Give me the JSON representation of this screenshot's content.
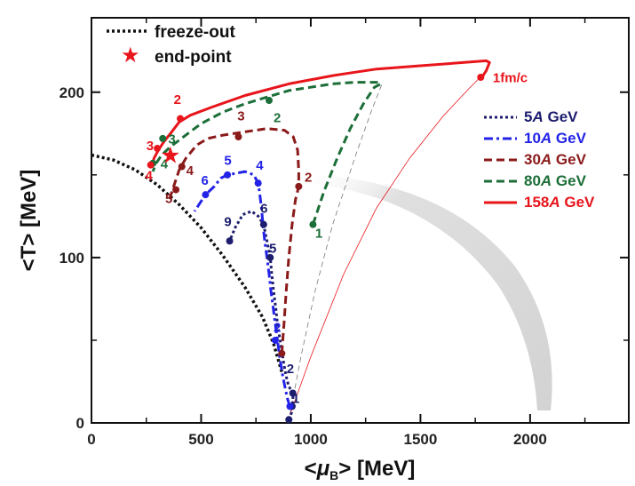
{
  "chart_data": {
    "type": "line",
    "xlabel": {
      "pre": "<",
      "sym": "μ",
      "sub": "B",
      "post": "> [MeV]"
    },
    "ylabel": "<T> [MeV]",
    "xlim": [
      0,
      2450
    ],
    "ylim": [
      0,
      245
    ],
    "xticks": [
      0,
      500,
      1000,
      1500,
      2000
    ],
    "yticks": [
      0,
      100,
      200
    ],
    "grid": false,
    "top_legend": {
      "freeze_out_label": "freeze-out",
      "endpoint_label": "end-point"
    },
    "legend_position": "right",
    "endpoint": {
      "x": 360,
      "y": 162,
      "color": "#e8151b"
    },
    "freeze_out": {
      "color": "#111111",
      "points": [
        [
          0,
          162
        ],
        [
          100,
          159
        ],
        [
          200,
          153
        ],
        [
          300,
          144
        ],
        [
          400,
          132
        ],
        [
          500,
          118
        ],
        [
          600,
          101
        ],
        [
          700,
          82
        ],
        [
          780,
          64
        ],
        [
          830,
          48
        ],
        [
          870,
          30
        ]
      ]
    },
    "series": [
      {
        "name": "5A GeV",
        "label_parts": [
          "5",
          "A",
          " GeV"
        ],
        "color": "#1d1d6e",
        "style": "dotted",
        "points": [
          [
            900,
            2
          ],
          [
            912,
            6
          ],
          [
            915,
            10
          ],
          [
            918,
            14
          ],
          [
            920,
            18
          ],
          [
            900,
            22
          ],
          [
            888,
            28
          ],
          [
            878,
            35
          ],
          [
            870,
            42
          ],
          [
            860,
            50
          ],
          [
            848,
            60
          ],
          [
            840,
            70
          ],
          [
            830,
            80
          ],
          [
            822,
            90
          ],
          [
            815,
            100
          ],
          [
            800,
            110
          ],
          [
            785,
            120
          ],
          [
            760,
            125
          ],
          [
            730,
            128
          ],
          [
            690,
            126
          ],
          [
            655,
            118
          ],
          [
            630,
            110
          ]
        ],
        "markers": [
          [
            900,
            2
          ],
          [
            915,
            10
          ],
          [
            918,
            18
          ],
          [
            815,
            100
          ],
          [
            785,
            120
          ],
          [
            630,
            110
          ]
        ],
        "labels": [
          {
            "text": "1",
            "x": 915,
            "y": 12
          },
          {
            "text": "2",
            "x": 890,
            "y": 30
          },
          {
            "text": "5",
            "x": 810,
            "y": 103
          },
          {
            "text": "6",
            "x": 770,
            "y": 127
          },
          {
            "text": "9",
            "x": 605,
            "y": 119
          }
        ]
      },
      {
        "name": "10A GeV",
        "label_parts": [
          "10",
          "A",
          " GeV"
        ],
        "color": "#2323e8",
        "style": "dashdot",
        "points": [
          [
            905,
            10
          ],
          [
            895,
            14
          ],
          [
            885,
            20
          ],
          [
            870,
            30
          ],
          [
            858,
            40
          ],
          [
            848,
            50
          ],
          [
            838,
            60
          ],
          [
            828,
            70
          ],
          [
            818,
            80
          ],
          [
            810,
            90
          ],
          [
            800,
            100
          ],
          [
            790,
            110
          ],
          [
            782,
            120
          ],
          [
            775,
            130
          ],
          [
            768,
            138
          ],
          [
            760,
            145
          ],
          [
            740,
            150
          ],
          [
            700,
            152
          ],
          [
            660,
            151
          ],
          [
            620,
            150
          ],
          [
            590,
            148
          ],
          [
            560,
            143
          ],
          [
            520,
            138
          ],
          [
            490,
            132
          ],
          [
            470,
            128
          ]
        ],
        "markers": [
          [
            905,
            10
          ],
          [
            838,
            50
          ],
          [
            760,
            145
          ],
          [
            620,
            150
          ],
          [
            520,
            138
          ]
        ],
        "labels": [
          {
            "text": "2",
            "x": 830,
            "y": 55
          },
          {
            "text": "4",
            "x": 750,
            "y": 153
          },
          {
            "text": "5",
            "x": 605,
            "y": 156
          },
          {
            "text": "6",
            "x": 500,
            "y": 144
          }
        ]
      },
      {
        "name": "30A GeV",
        "label_parts": [
          "30",
          "A",
          " GeV"
        ],
        "color": "#8b1a1a",
        "style": "dashed",
        "points": [
          [
            868,
            42
          ],
          [
            878,
            60
          ],
          [
            888,
            80
          ],
          [
            900,
            100
          ],
          [
            915,
            120
          ],
          [
            930,
            135
          ],
          [
            945,
            143
          ],
          [
            945,
            152
          ],
          [
            940,
            165
          ],
          [
            920,
            173
          ],
          [
            880,
            177
          ],
          [
            800,
            178
          ],
          [
            700,
            176
          ],
          [
            600,
            174
          ],
          [
            530,
            172
          ],
          [
            480,
            168
          ],
          [
            430,
            160
          ],
          [
            400,
            153
          ],
          [
            380,
            145
          ],
          [
            365,
            139
          ],
          [
            355,
            135
          ]
        ],
        "markers": [
          [
            868,
            42
          ],
          [
            945,
            143
          ],
          [
            670,
            173
          ],
          [
            412,
            155
          ],
          [
            385,
            141
          ]
        ],
        "labels": [
          {
            "text": "2",
            "x": 972,
            "y": 146
          },
          {
            "text": "3",
            "x": 665,
            "y": 183
          },
          {
            "text": "4",
            "x": 432,
            "y": 150
          },
          {
            "text": "5",
            "x": 336,
            "y": 133
          }
        ]
      },
      {
        "name": "80A GeV",
        "label_parts": [
          "80",
          "A",
          " GeV"
        ],
        "color": "#1c6e38",
        "style": "dashed",
        "points": [
          [
            1010,
            120
          ],
          [
            1060,
            140
          ],
          [
            1120,
            160
          ],
          [
            1180,
            178
          ],
          [
            1240,
            193
          ],
          [
            1290,
            203
          ],
          [
            1320,
            205
          ],
          [
            1300,
            206
          ],
          [
            1200,
            206
          ],
          [
            1100,
            205
          ],
          [
            1000,
            203
          ],
          [
            900,
            201
          ],
          [
            800,
            197
          ],
          [
            700,
            193
          ],
          [
            600,
            188
          ],
          [
            500,
            181
          ],
          [
            430,
            174
          ],
          [
            360,
            167
          ],
          [
            320,
            162
          ],
          [
            295,
            157
          ],
          [
            280,
            152
          ]
        ],
        "markers": [
          [
            1010,
            120
          ],
          [
            810,
            195
          ],
          [
            325,
            172
          ],
          [
            280,
            157
          ]
        ],
        "labels": [
          {
            "text": "1",
            "x": 1020,
            "y": 112
          },
          {
            "text": "2",
            "x": 830,
            "y": 182
          },
          {
            "text": "3",
            "x": 350,
            "y": 169
          },
          {
            "text": "4",
            "x": 315,
            "y": 154
          }
        ]
      },
      {
        "name": "158A GeV",
        "label_parts": [
          "158",
          "A",
          " GeV"
        ],
        "color": "#e8151b",
        "style": "solid",
        "points": [
          [
            1780,
            209
          ],
          [
            1800,
            213
          ],
          [
            1815,
            218
          ],
          [
            1800,
            219
          ],
          [
            1700,
            218
          ],
          [
            1500,
            216
          ],
          [
            1300,
            214
          ],
          [
            1100,
            210
          ],
          [
            900,
            205
          ],
          [
            700,
            198
          ],
          [
            550,
            191
          ],
          [
            450,
            186
          ],
          [
            400,
            182
          ],
          [
            360,
            175
          ],
          [
            330,
            170
          ],
          [
            305,
            165
          ],
          [
            285,
            160
          ],
          [
            275,
            155
          ]
        ],
        "markers": [
          [
            1775,
            209
          ],
          [
            405,
            184
          ],
          [
            300,
            166
          ],
          [
            270,
            156
          ]
        ],
        "labels": [
          {
            "text": "1fm/c",
            "x": 1830,
            "y": 206
          },
          {
            "text": "2",
            "x": 375,
            "y": 193
          },
          {
            "text": "3",
            "x": 250,
            "y": 165
          },
          {
            "text": "4",
            "x": 245,
            "y": 147
          }
        ]
      }
    ],
    "thin_connectors": [
      {
        "color": "#777777",
        "points": [
          [
            905,
            5
          ],
          [
            955,
            40
          ],
          [
            1020,
            80
          ],
          [
            1100,
            120
          ],
          [
            1200,
            160
          ],
          [
            1280,
            190
          ],
          [
            1325,
            205
          ]
        ]
      },
      {
        "color": "#e8151b",
        "points": [
          [
            905,
            5
          ],
          [
            1000,
            40
          ],
          [
            1150,
            90
          ],
          [
            1300,
            130
          ],
          [
            1450,
            160
          ],
          [
            1600,
            185
          ],
          [
            1720,
            202
          ],
          [
            1780,
            210
          ]
        ]
      }
    ]
  }
}
